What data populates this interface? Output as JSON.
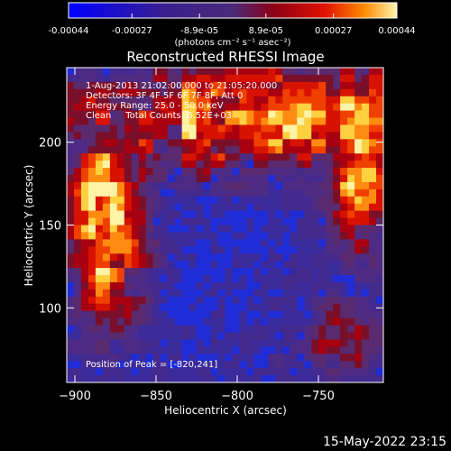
{
  "chart_data": {
    "type": "heatmap",
    "title": "Reconstructed RHESSI Image",
    "xlabel": "Heliocentric X (arcsec)",
    "ylabel": "Heliocentric Y (arcsec)",
    "colorbar": {
      "ticks": [
        "-0.00044",
        "-0.00027",
        "-8.9e-05",
        "8.9e-05",
        "0.00027",
        "0.00044"
      ],
      "tick_values": [
        -0.00044,
        -0.00027,
        -8.9e-05,
        8.9e-05,
        0.00027,
        0.00044
      ],
      "range": [
        -0.00044,
        0.00044
      ],
      "unit_label": "(photons cm⁻² s⁻¹ asec⁻²)"
    },
    "xlim": [
      -905,
      -710
    ],
    "ylim": [
      55,
      245
    ],
    "xticks": [
      -900,
      -850,
      -800,
      -750
    ],
    "xtick_labels": [
      "−900",
      "−850",
      "−800",
      "−750"
    ],
    "yticks": [
      100,
      150,
      200
    ],
    "ytick_labels": [
      "100",
      "150",
      "200"
    ],
    "annotations": [
      "1-Aug-2013 21:02:00.000 to 21:05:20.000",
      "Detectors: 3F 4F 5F 6F 7F 8F, Att 0",
      "Energy Range: 25.0 - 50.0 keV",
      "Clean     Total Counts: 6.52E+03"
    ],
    "peak_label": "Position of Peak = [-820,241]",
    "grid": false,
    "colors": {
      "background": "#000000",
      "scale": [
        "#0000ff",
        "#3a1f8c",
        "#4b2a7a",
        "#8a0018",
        "#e01000",
        "#ff8a00",
        "#fff4b0"
      ]
    }
  },
  "footer": {
    "timestamp": "15-May-2022 23:15"
  }
}
